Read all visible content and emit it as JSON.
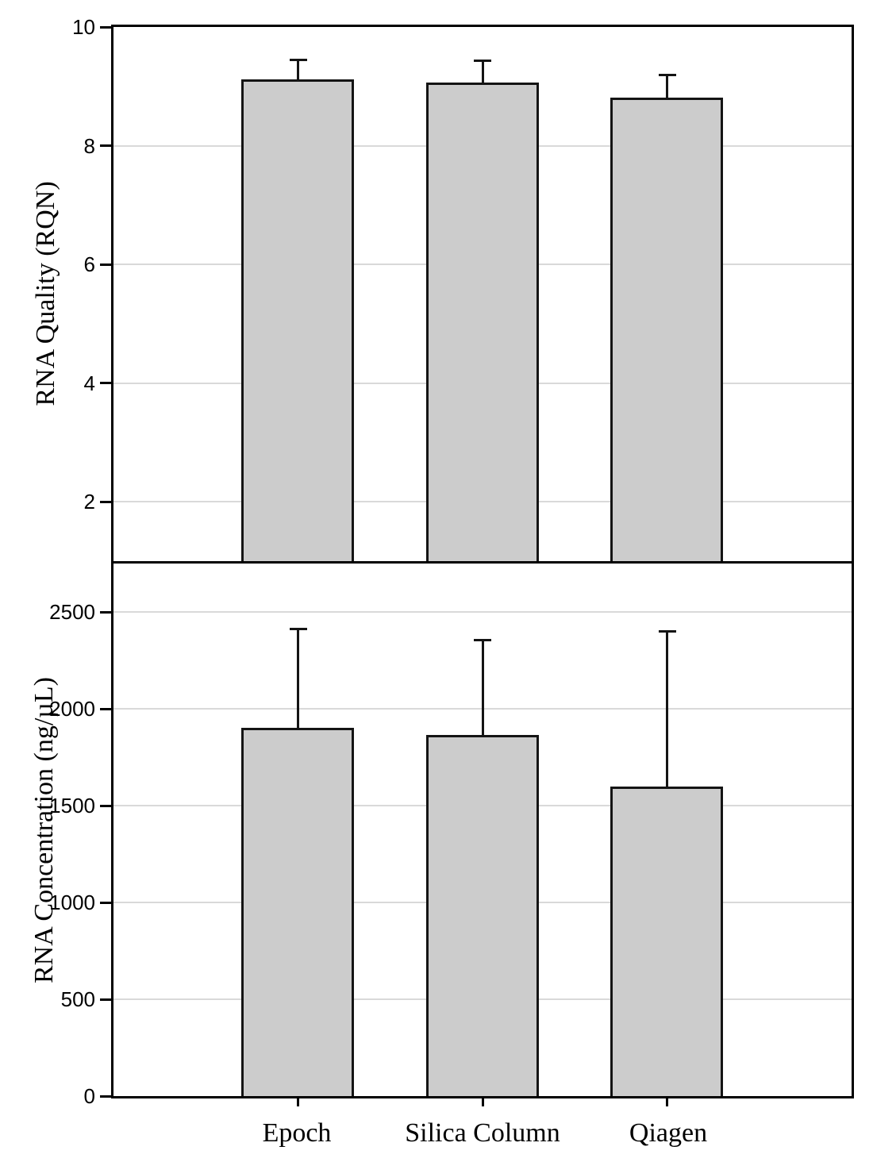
{
  "figure": {
    "background": "#ffffff",
    "bar_fill": "#cccccc",
    "bar_border": "#141414",
    "gridline_color": "#d9d9d9",
    "axis_color": "#000000"
  },
  "chart_data": [
    {
      "type": "bar",
      "panel": "top",
      "title": "",
      "xlabel": "",
      "ylabel": "RNA Quality (RQN)",
      "categories": [
        "Epoch",
        "Silica Column",
        "Qiagen"
      ],
      "values": [
        9.12,
        9.07,
        8.81
      ],
      "error_upper": [
        0.32,
        0.36,
        0.38
      ],
      "ylim": [
        1,
        10
      ],
      "yticks": [
        2,
        4,
        6,
        8,
        10
      ],
      "grid": true,
      "legend": false
    },
    {
      "type": "bar",
      "panel": "bottom",
      "title": "",
      "xlabel": "",
      "ylabel": "RNA Concentration (ng/µL)",
      "categories": [
        "Epoch",
        "Silica Column",
        "Qiagen"
      ],
      "values": [
        1900,
        1865,
        1600
      ],
      "error_upper": [
        510,
        490,
        800
      ],
      "ylim": [
        0,
        2750
      ],
      "yticks": [
        0,
        500,
        1000,
        1500,
        2000,
        2500
      ],
      "grid": true,
      "legend": false
    }
  ]
}
